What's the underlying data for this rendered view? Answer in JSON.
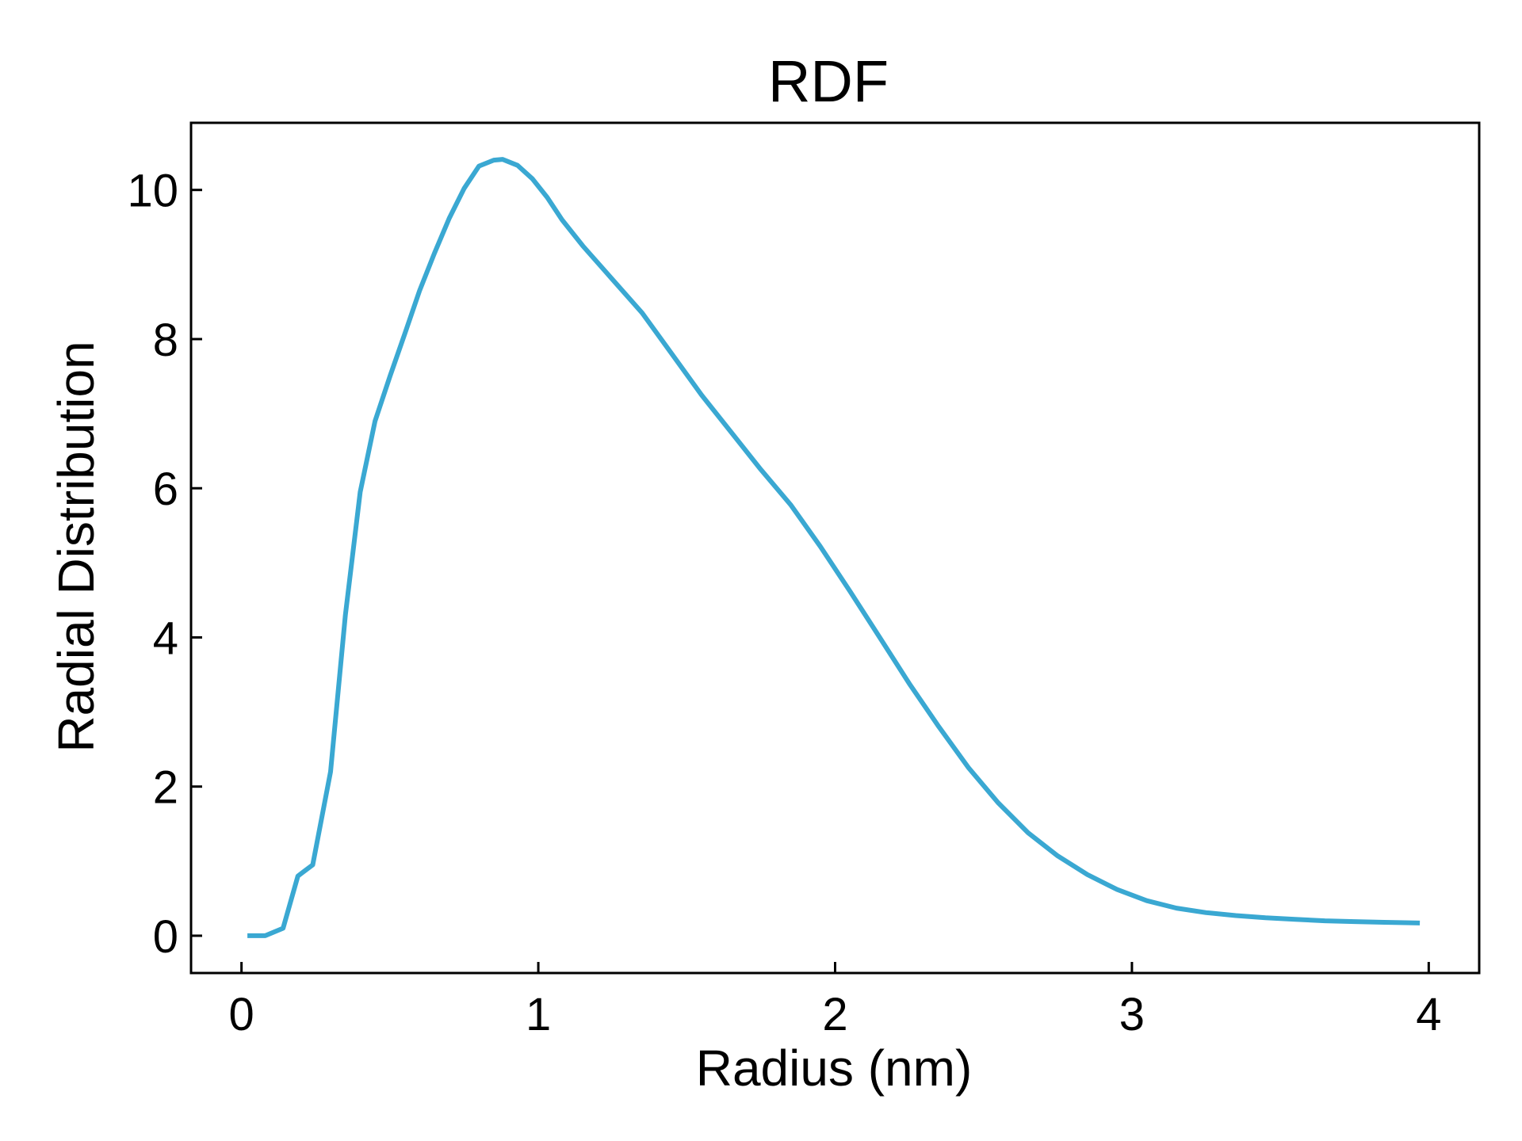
{
  "chart_data": {
    "type": "line",
    "title": "RDF",
    "xlabel": "Radius (nm)",
    "ylabel": "Radial Distribution",
    "xlim": [
      -0.17,
      4.17
    ],
    "ylim": [
      -0.5,
      10.9
    ],
    "xticks": [
      0,
      1,
      2,
      3,
      4
    ],
    "yticks": [
      0,
      2,
      4,
      6,
      8,
      10
    ],
    "xtick_labels": [
      "0",
      "1",
      "2",
      "3",
      "4"
    ],
    "ytick_labels": [
      "0",
      "2",
      "4",
      "6",
      "8",
      "10"
    ],
    "grid": false,
    "legend": "none",
    "line_color": "#3aa8d2",
    "series": [
      {
        "x": [
          0.02,
          0.08,
          0.14,
          0.19,
          0.24,
          0.3,
          0.35,
          0.4,
          0.45,
          0.5,
          0.55,
          0.6,
          0.65,
          0.7,
          0.75,
          0.8,
          0.85,
          0.88,
          0.93,
          0.98,
          1.03,
          1.08,
          1.15,
          1.25,
          1.35,
          1.45,
          1.55,
          1.65,
          1.75,
          1.85,
          1.95,
          2.05,
          2.15,
          2.25,
          2.35,
          2.45,
          2.55,
          2.65,
          2.75,
          2.85,
          2.95,
          3.05,
          3.15,
          3.25,
          3.35,
          3.45,
          3.55,
          3.65,
          3.75,
          3.85,
          3.97
        ],
        "y": [
          0,
          0,
          0.1,
          0.8,
          0.95,
          2.2,
          4.3,
          5.95,
          6.9,
          7.5,
          8.07,
          8.65,
          9.15,
          9.62,
          10.02,
          10.32,
          10.4,
          10.41,
          10.33,
          10.15,
          9.9,
          9.6,
          9.25,
          8.8,
          8.35,
          7.8,
          7.25,
          6.75,
          6.25,
          5.78,
          5.22,
          4.62,
          4.0,
          3.38,
          2.8,
          2.25,
          1.78,
          1.38,
          1.07,
          0.82,
          0.62,
          0.47,
          0.37,
          0.31,
          0.27,
          0.24,
          0.22,
          0.2,
          0.19,
          0.18,
          0.17
        ]
      }
    ]
  }
}
